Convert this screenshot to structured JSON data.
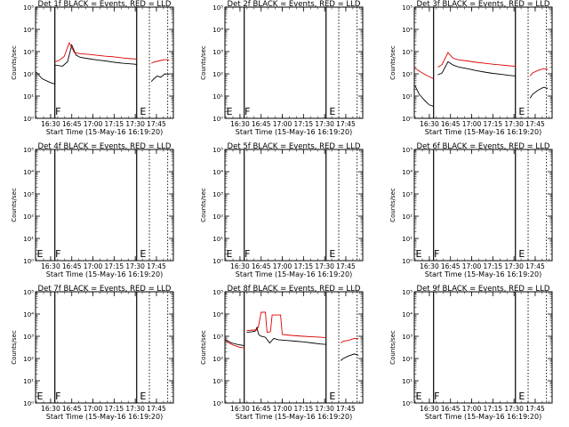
{
  "figure": {
    "xlabel": "Start Time (15-May-16 16:19:20)",
    "ylabel": "Counts/sec",
    "x_ticks": [
      "16:30",
      "16:45",
      "17:00",
      "17:15",
      "17:30",
      "17:45"
    ],
    "series_colors": {
      "events": "#000000",
      "lld": "#dd0000"
    }
  },
  "chart_data": [
    {
      "type": "line",
      "title": "Det 1f BLACK = Events, RED = LLD",
      "xlabel": "Start Time (15-May-16 16:19:20)",
      "ylabel": "Counts/sec",
      "yscale": "log",
      "ylim": [
        1,
        100000
      ],
      "y_ticks": [
        "10⁰",
        "10¹",
        "10²",
        "10³",
        "10⁴",
        "10⁵"
      ],
      "xlim": [
        "16:19:20",
        "17:57:00"
      ],
      "segment_labels": [
        {
          "text": "F",
          "time": "16:32"
        },
        {
          "text": "E",
          "time": "17:32"
        }
      ],
      "vlines": {
        "solid": [
          "16:33",
          "17:31"
        ],
        "dotted": [
          "17:40",
          "17:53"
        ]
      },
      "series": [
        {
          "key": "events",
          "color": "#000000",
          "points": [
            [
              16.33,
              120
            ],
            [
              16.4,
              60
            ],
            [
              16.5,
              40
            ],
            [
              16.55,
              35
            ],
            [
              16.55,
              250
            ],
            [
              16.64,
              220
            ],
            [
              16.7,
              350
            ],
            [
              16.75,
              2000
            ],
            [
              16.8,
              700
            ],
            [
              16.85,
              550
            ],
            [
              16.95,
              480
            ],
            [
              17.05,
              420
            ],
            [
              17.15,
              380
            ],
            [
              17.25,
              330
            ],
            [
              17.35,
              300
            ],
            [
              17.5,
              270
            ],
            [
              17.52,
              250
            ],
            [
              null,
              null
            ],
            [
              17.69,
              45
            ],
            [
              17.72,
              60
            ],
            [
              17.76,
              80
            ],
            [
              17.8,
              70
            ],
            [
              17.85,
              100
            ],
            [
              17.9,
              95
            ]
          ]
        },
        {
          "key": "lld",
          "color": "#dd0000",
          "points": [
            [
              16.55,
              350
            ],
            [
              16.6,
              400
            ],
            [
              16.66,
              600
            ],
            [
              16.72,
              2500
            ],
            [
              16.78,
              900
            ],
            [
              16.85,
              800
            ],
            [
              16.95,
              750
            ],
            [
              17.05,
              680
            ],
            [
              17.15,
              620
            ],
            [
              17.25,
              580
            ],
            [
              17.35,
              520
            ],
            [
              17.45,
              480
            ],
            [
              17.52,
              460
            ],
            [
              null,
              null
            ],
            [
              17.69,
              300
            ],
            [
              17.72,
              340
            ],
            [
              17.78,
              380
            ],
            [
              17.85,
              440
            ],
            [
              17.9,
              410
            ]
          ]
        }
      ]
    },
    {
      "type": "line",
      "title": "Det 2f BLACK = Events, RED = LLD",
      "xlabel": "Start Time (15-May-16 16:19:20)",
      "ylabel": "Counts/sec",
      "yscale": "log",
      "ylim": [
        1,
        100000
      ],
      "y_ticks": [
        "10⁰",
        "10¹",
        "10²",
        "10³",
        "10⁴",
        "10⁵"
      ],
      "xlim": [
        "16:19:20",
        "17:57:00"
      ],
      "segment_labels": [
        {
          "text": "E",
          "time": "16:19"
        },
        {
          "text": "F",
          "time": "16:32"
        },
        {
          "text": "E",
          "time": "17:32"
        }
      ],
      "vlines": {
        "solid": [
          "16:33",
          "17:31"
        ],
        "dotted": [
          "17:40",
          "17:53"
        ]
      },
      "series": []
    },
    {
      "type": "line",
      "title": "Det 3f BLACK = Events, RED = LLD",
      "xlabel": "Start Time (15-May-16 16:19:20)",
      "ylabel": "Counts/sec",
      "yscale": "log",
      "ylim": [
        1,
        100000
      ],
      "y_ticks": [
        "10⁰",
        "10¹",
        "10²",
        "10³",
        "10⁴",
        "10⁵"
      ],
      "xlim": [
        "16:19:20",
        "17:57:00"
      ],
      "segment_labels": [
        {
          "text": "E",
          "time": "17:32"
        }
      ],
      "vlines": {
        "solid": [
          "16:33",
          "17:31"
        ],
        "dotted": [
          "17:40",
          "17:53"
        ]
      },
      "series": [
        {
          "key": "events",
          "color": "#000000",
          "points": [
            [
              16.33,
              30
            ],
            [
              16.38,
              12
            ],
            [
              16.45,
              6
            ],
            [
              16.5,
              4
            ],
            [
              16.55,
              3.5
            ],
            [
              null,
              null
            ],
            [
              16.6,
              90
            ],
            [
              16.65,
              110
            ],
            [
              16.72,
              350
            ],
            [
              16.78,
              250
            ],
            [
              16.85,
              200
            ],
            [
              16.95,
              170
            ],
            [
              17.05,
              140
            ],
            [
              17.15,
              120
            ],
            [
              17.25,
              105
            ],
            [
              17.35,
              95
            ],
            [
              17.45,
              85
            ],
            [
              17.52,
              80
            ],
            [
              null,
              null
            ],
            [
              17.69,
              8
            ],
            [
              17.72,
              12
            ],
            [
              17.78,
              18
            ],
            [
              17.85,
              25
            ],
            [
              17.9,
              22
            ]
          ]
        },
        {
          "key": "lld",
          "color": "#dd0000",
          "points": [
            [
              16.33,
              180
            ],
            [
              16.4,
              120
            ],
            [
              16.48,
              80
            ],
            [
              16.55,
              60
            ],
            [
              null,
              null
            ],
            [
              16.6,
              200
            ],
            [
              16.65,
              260
            ],
            [
              16.72,
              900
            ],
            [
              16.78,
              500
            ],
            [
              16.85,
              420
            ],
            [
              16.95,
              380
            ],
            [
              17.05,
              330
            ],
            [
              17.15,
              300
            ],
            [
              17.25,
              270
            ],
            [
              17.35,
              250
            ],
            [
              17.45,
              230
            ],
            [
              17.52,
              220
            ],
            [
              null,
              null
            ],
            [
              17.69,
              80
            ],
            [
              17.72,
              110
            ],
            [
              17.78,
              140
            ],
            [
              17.85,
              170
            ],
            [
              17.9,
              160
            ]
          ]
        }
      ]
    },
    {
      "type": "line",
      "title": "Det 4f BLACK = Events, RED = LLD",
      "xlabel": "Start Time (15-May-16 16:19:20)",
      "ylabel": "Counts/sec",
      "yscale": "log",
      "ylim": [
        1,
        100000
      ],
      "y_ticks": [
        "10⁰",
        "10¹",
        "10²",
        "10³",
        "10⁴",
        "10⁵"
      ],
      "xlim": [
        "16:19:20",
        "17:57:00"
      ],
      "segment_labels": [
        {
          "text": "E",
          "time": "16:19"
        },
        {
          "text": "F",
          "time": "16:32"
        },
        {
          "text": "E",
          "time": "17:32"
        }
      ],
      "vlines": {
        "solid": [
          "16:33",
          "17:31"
        ],
        "dotted": [
          "17:40",
          "17:53"
        ]
      },
      "series": []
    },
    {
      "type": "line",
      "title": "Det 5f BLACK = Events, RED = LLD",
      "xlabel": "Start Time (15-May-16 16:19:20)",
      "ylabel": "Counts/sec",
      "yscale": "log",
      "ylim": [
        1,
        100000
      ],
      "y_ticks": [
        "10⁰",
        "10¹",
        "10²",
        "10³",
        "10⁴",
        "10⁵"
      ],
      "xlim": [
        "16:19:20",
        "17:57:00"
      ],
      "segment_labels": [
        {
          "text": "E",
          "time": "16:19"
        },
        {
          "text": "F",
          "time": "16:32"
        },
        {
          "text": "E",
          "time": "17:32"
        }
      ],
      "vlines": {
        "solid": [
          "16:33",
          "17:31"
        ],
        "dotted": [
          "17:40",
          "17:53"
        ]
      },
      "series": []
    },
    {
      "type": "line",
      "title": "Det 6f BLACK = Events, RED = LLD",
      "xlabel": "Start Time (15-May-16 16:19:20)",
      "ylabel": "Counts/sec",
      "yscale": "log",
      "ylim": [
        1,
        100000
      ],
      "y_ticks": [
        "10⁰",
        "10¹",
        "10²",
        "10³",
        "10⁴",
        "10⁵"
      ],
      "xlim": [
        "16:19:20",
        "17:57:00"
      ],
      "segment_labels": [
        {
          "text": "E",
          "time": "16:19"
        },
        {
          "text": "F",
          "time": "16:32"
        },
        {
          "text": "E",
          "time": "17:32"
        }
      ],
      "vlines": {
        "solid": [
          "16:33",
          "17:31"
        ],
        "dotted": [
          "17:40",
          "17:53"
        ]
      },
      "series": []
    },
    {
      "type": "line",
      "title": "Det 7f BLACK = Events, RED = LLD",
      "xlabel": "Start Time (15-May-16 16:19:20)",
      "ylabel": "Counts/sec",
      "yscale": "log",
      "ylim": [
        1,
        100000
      ],
      "y_ticks": [
        "10⁰",
        "10¹",
        "10²",
        "10³",
        "10⁴",
        "10⁵"
      ],
      "xlim": [
        "16:19:20",
        "17:57:00"
      ],
      "segment_labels": [
        {
          "text": "E",
          "time": "16:19"
        },
        {
          "text": "F",
          "time": "16:32"
        },
        {
          "text": "E",
          "time": "17:32"
        }
      ],
      "vlines": {
        "solid": [
          "16:33",
          "17:31"
        ],
        "dotted": [
          "17:40",
          "17:53"
        ]
      },
      "series": []
    },
    {
      "type": "line",
      "title": "Det 8f BLACK = Events, RED = LLD",
      "xlabel": "Start Time (15-May-16 16:19:20)",
      "ylabel": "Counts/sec",
      "yscale": "log",
      "ylim": [
        1,
        100000
      ],
      "y_ticks": [
        "10⁰",
        "10¹",
        "10²",
        "10³",
        "10⁴",
        "10⁵"
      ],
      "xlim": [
        "16:19:20",
        "17:57:00"
      ],
      "segment_labels": [
        {
          "text": "E",
          "time": "17:32"
        }
      ],
      "vlines": {
        "solid": [
          "16:33",
          "17:31"
        ],
        "dotted": [
          "17:40",
          "17:53"
        ]
      },
      "series": [
        {
          "key": "events",
          "color": "#000000",
          "points": [
            [
              16.33,
              700
            ],
            [
              16.4,
              500
            ],
            [
              16.48,
              420
            ],
            [
              16.55,
              380
            ],
            [
              null,
              null
            ],
            [
              16.58,
              1500
            ],
            [
              16.64,
              1600
            ],
            [
              16.68,
              1700
            ],
            [
              16.7,
              2500
            ],
            [
              16.72,
              1200
            ],
            [
              16.75,
              1000
            ],
            [
              16.8,
              900
            ],
            [
              16.85,
              500
            ],
            [
              16.9,
              800
            ],
            [
              16.95,
              700
            ],
            [
              17.05,
              650
            ],
            [
              17.15,
              600
            ],
            [
              17.25,
              560
            ],
            [
              17.35,
              500
            ],
            [
              17.45,
              450
            ],
            [
              17.52,
              430
            ],
            [
              null,
              null
            ],
            [
              17.69,
              80
            ],
            [
              17.72,
              100
            ],
            [
              17.78,
              130
            ],
            [
              17.85,
              160
            ],
            [
              17.9,
              140
            ]
          ]
        },
        {
          "key": "lld",
          "color": "#dd0000",
          "points": [
            [
              16.33,
              600
            ],
            [
              16.42,
              400
            ],
            [
              16.5,
              320
            ],
            [
              16.55,
              300
            ],
            [
              null,
              null
            ],
            [
              16.58,
              1800
            ],
            [
              16.66,
              1900
            ],
            [
              16.7,
              1900
            ],
            [
              16.72,
              3000
            ],
            [
              16.75,
              12000
            ],
            [
              16.8,
              12000
            ],
            [
              16.82,
              1500
            ],
            [
              16.86,
              1600
            ],
            [
              16.88,
              9000
            ],
            [
              16.98,
              9000
            ],
            [
              17.0,
              1200
            ],
            [
              17.1,
              1100
            ],
            [
              17.25,
              1000
            ],
            [
              17.35,
              950
            ],
            [
              17.45,
              900
            ],
            [
              17.52,
              860
            ],
            [
              null,
              null
            ],
            [
              17.69,
              500
            ],
            [
              17.72,
              600
            ],
            [
              17.78,
              650
            ],
            [
              17.85,
              800
            ],
            [
              17.9,
              780
            ]
          ]
        }
      ]
    },
    {
      "type": "line",
      "title": "Det 9f BLACK = Events, RED = LLD",
      "xlabel": "Start Time (15-May-16 16:19:20)",
      "ylabel": "Counts/sec",
      "yscale": "log",
      "ylim": [
        1,
        100000
      ],
      "y_ticks": [
        "10⁰",
        "10¹",
        "10²",
        "10³",
        "10⁴",
        "10⁵"
      ],
      "xlim": [
        "16:19:20",
        "17:57:00"
      ],
      "segment_labels": [
        {
          "text": "E",
          "time": "16:19"
        },
        {
          "text": "F",
          "time": "16:32"
        },
        {
          "text": "E",
          "time": "17:32"
        }
      ],
      "vlines": {
        "solid": [
          "16:33",
          "17:31"
        ],
        "dotted": [
          "17:40",
          "17:53"
        ]
      },
      "series": []
    }
  ]
}
